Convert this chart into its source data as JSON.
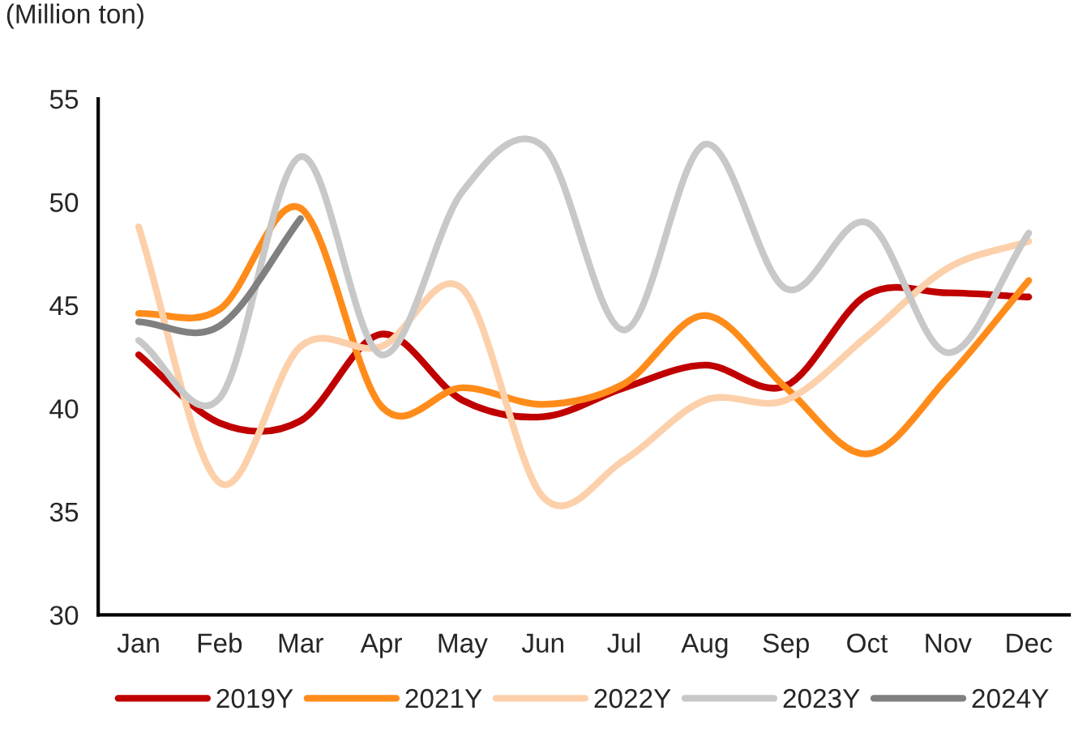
{
  "chart_data": {
    "type": "line",
    "ylabel": "(Million ton)",
    "categories": [
      "Jan",
      "Feb",
      "Mar",
      "Apr",
      "May",
      "Jun",
      "Jul",
      "Aug",
      "Sep",
      "Oct",
      "Nov",
      "Dec"
    ],
    "series": [
      {
        "name": "2019Y",
        "color": "#c00000",
        "values": [
          42.6,
          39.3,
          39.4,
          43.6,
          40.4,
          39.6,
          41.0,
          42.1,
          41.1,
          45.5,
          45.6,
          45.4
        ]
      },
      {
        "name": "2021Y",
        "color": "#ff8c1a",
        "values": [
          44.6,
          44.8,
          49.7,
          40.1,
          41.0,
          40.2,
          41.2,
          44.5,
          41.0,
          37.8,
          41.5,
          46.2
        ]
      },
      {
        "name": "2022Y",
        "color": "#fcd0aa",
        "values": [
          48.8,
          36.4,
          43.0,
          43.0,
          45.8,
          35.7,
          37.5,
          40.4,
          40.4,
          43.5,
          46.8,
          48.1
        ]
      },
      {
        "name": "2023Y",
        "color": "#c8c8c8",
        "values": [
          43.3,
          40.5,
          52.2,
          42.6,
          50.5,
          52.7,
          43.8,
          52.8,
          45.8,
          49.0,
          42.7,
          48.5
        ]
      },
      {
        "name": "2024Y",
        "color": "#808080",
        "values": [
          44.2,
          44.0,
          49.2,
          null,
          null,
          null,
          null,
          null,
          null,
          null,
          null,
          null
        ]
      }
    ],
    "ylim": [
      30,
      55
    ],
    "yticks": [
      30,
      35,
      40,
      45,
      50,
      55
    ],
    "grid": false,
    "legend": "bottom",
    "marker": "none",
    "line_style": "solid"
  }
}
